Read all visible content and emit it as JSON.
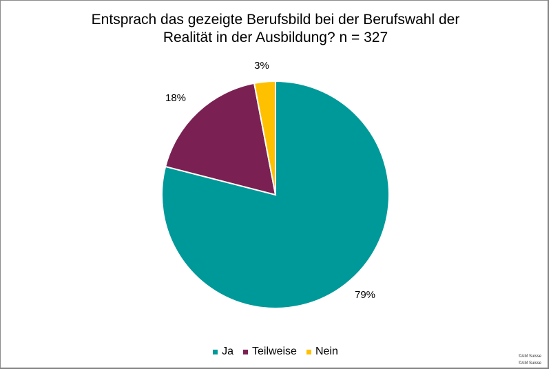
{
  "chart_data": {
    "type": "pie",
    "title_line1": "Entsprach das gezeigte Berufsbild bei der Berufswahl der",
    "title_line2": "Realität in der Ausbildung? n = 327",
    "categories": [
      "Ja",
      "Teilweise",
      "Nein"
    ],
    "values": [
      79,
      18,
      3
    ],
    "labels": [
      "79%",
      "18%",
      "3%"
    ],
    "colors": [
      "#00999a",
      "#7b2052",
      "#ffc000"
    ],
    "legend_position": "bottom"
  },
  "copyright": [
    "©AM Suisse",
    "©AM Suisse"
  ]
}
